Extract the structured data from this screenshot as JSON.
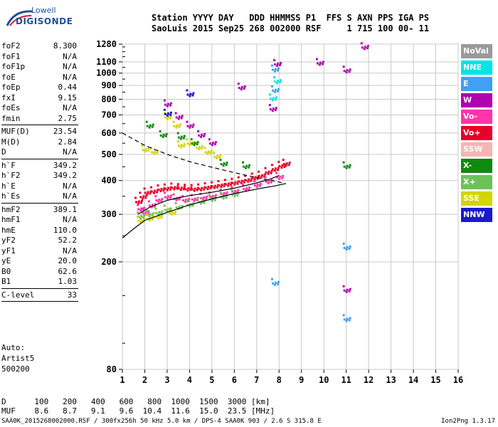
{
  "logo": {
    "line1": "Lowell",
    "line2": "DIGISONDE"
  },
  "header": {
    "line1": "Station YYYY DAY   DDD HHMMSS P1  FFS S AXN PPS IGA PS",
    "line2": "SaoLuis 2015 Sep25 268 002000 RSF     1 715 100 00- 11"
  },
  "params": [
    {
      "name": "foF2",
      "value": "8.300"
    },
    {
      "name": "foF1",
      "value": "N/A"
    },
    {
      "name": "foF1p",
      "value": "N/A"
    },
    {
      "name": "foE",
      "value": "N/A"
    },
    {
      "name": "foEp",
      "value": "0.44"
    },
    {
      "name": "fxI",
      "value": "9.15"
    },
    {
      "name": "foEs",
      "value": "N/A"
    },
    {
      "name": "fmin",
      "value": "2.75"
    },
    {
      "name": "MUF(D)",
      "value": "23.54"
    },
    {
      "name": "M(D)",
      "value": "2.84"
    },
    {
      "name": "D",
      "value": "N/A"
    },
    {
      "name": "h`F",
      "value": "349.2"
    },
    {
      "name": "h`F2",
      "value": "349.2"
    },
    {
      "name": "h`E",
      "value": "N/A"
    },
    {
      "name": "h`Es",
      "value": "N/A"
    },
    {
      "name": "hmF2",
      "value": "389.1"
    },
    {
      "name": "hmF1",
      "value": "N/A"
    },
    {
      "name": "hmE",
      "value": "110.0"
    },
    {
      "name": "yF2",
      "value": "52.2"
    },
    {
      "name": "yF1",
      "value": "N/A"
    },
    {
      "name": "yE",
      "value": "20.0"
    },
    {
      "name": "B0",
      "value": "62.6"
    },
    {
      "name": "B1",
      "value": "1.03"
    },
    {
      "name": "C-level",
      "value": "33"
    }
  ],
  "auto": {
    "line1": "Auto:",
    "line2": "Artist5",
    "line3": "500200"
  },
  "legend": [
    {
      "label": "NoVal",
      "color": "#9a9a9a"
    },
    {
      "label": "NNE",
      "color": "#00e5e5"
    },
    {
      "label": "E",
      "color": "#3fa0f5"
    },
    {
      "label": "W",
      "color": "#b000b0"
    },
    {
      "label": "Vo-",
      "color": "#ff33aa"
    },
    {
      "label": "Vo+",
      "color": "#e8002a"
    },
    {
      "label": "SSW",
      "color": "#f5b5b5"
    },
    {
      "label": "X-",
      "color": "#0f8a0f"
    },
    {
      "label": "X+",
      "color": "#6cc25a"
    },
    {
      "label": "SSE",
      "color": "#d4d400"
    },
    {
      "label": "NNW",
      "color": "#1a1acc"
    }
  ],
  "dmuf": {
    "line1": "D      100   200   400   600   800  1000  1500  3000 [km]",
    "line2": "MUF    8.6   8.7   9.1   9.6  10.4  11.6  15.0  23.5 [MHz]"
  },
  "footer": {
    "left": "SAA0K_2015268002000.RSF / 300fx256h 50 kHz 5.0 km / DPS-4 SAA0K 903 / 2.6 S 315.8 E",
    "right": "Ion2Png 1.3.17"
  },
  "chart_data": {
    "type": "scatter",
    "title": "",
    "xlabel": "",
    "ylabel": "",
    "x_ticks": [
      1,
      2,
      3,
      4,
      5,
      6,
      7,
      8,
      9,
      10,
      11,
      12,
      13,
      14,
      15,
      16
    ],
    "y_ticks": [
      80,
      200,
      300,
      400,
      500,
      600,
      700,
      800,
      900,
      1000,
      1100,
      1280
    ],
    "xlim": [
      1,
      16
    ],
    "ylim": [
      80,
      1280
    ],
    "y_scale": "log",
    "grid": true,
    "legend_position": "right",
    "traces": [
      {
        "name": "Vo+",
        "color": "#e8002a",
        "points": [
          [
            1.7,
            340
          ],
          [
            1.9,
            355
          ],
          [
            2.1,
            368
          ],
          [
            2.4,
            372
          ],
          [
            2.7,
            378
          ],
          [
            3.0,
            381
          ],
          [
            3.3,
            384
          ],
          [
            3.6,
            382
          ],
          [
            3.9,
            380
          ],
          [
            4.2,
            379
          ],
          [
            4.5,
            381
          ],
          [
            4.8,
            385
          ],
          [
            5.1,
            388
          ],
          [
            5.4,
            392
          ],
          [
            5.7,
            396
          ],
          [
            6.0,
            400
          ],
          [
            6.3,
            405
          ],
          [
            6.6,
            410
          ],
          [
            6.9,
            418
          ],
          [
            7.2,
            425
          ],
          [
            7.5,
            438
          ],
          [
            7.8,
            450
          ],
          [
            8.1,
            462
          ],
          [
            8.3,
            470
          ]
        ]
      },
      {
        "name": "Vo-",
        "color": "#ff33aa",
        "points": [
          [
            1.8,
            320
          ],
          [
            2.0,
            310
          ],
          [
            2.3,
            330
          ],
          [
            2.6,
            345
          ],
          [
            3.0,
            355
          ],
          [
            3.4,
            350
          ],
          [
            3.8,
            345
          ],
          [
            4.2,
            348
          ],
          [
            4.6,
            352
          ],
          [
            5.0,
            356
          ],
          [
            5.5,
            365
          ],
          [
            6.0,
            372
          ],
          [
            6.5,
            380
          ],
          [
            7.0,
            392
          ],
          [
            7.5,
            405
          ],
          [
            8.0,
            420
          ]
        ]
      },
      {
        "name": "X+",
        "color": "#6cc25a",
        "points": [
          [
            1.8,
            300
          ],
          [
            2.2,
            305
          ],
          [
            2.6,
            310
          ],
          [
            3.0,
            318
          ],
          [
            3.5,
            325
          ],
          [
            4.0,
            332
          ],
          [
            4.5,
            340
          ],
          [
            5.0,
            348
          ],
          [
            5.5,
            355
          ],
          [
            6.0,
            362
          ]
        ]
      },
      {
        "name": "SSE",
        "color": "#d4d400",
        "points": [
          [
            1.8,
            290
          ],
          [
            2.2,
            295
          ],
          [
            2.6,
            300
          ],
          [
            3.2,
            310
          ],
          [
            3.6,
            550
          ],
          [
            4.0,
            560
          ],
          [
            4.4,
            540
          ],
          [
            4.8,
            520
          ],
          [
            5.2,
            500
          ],
          [
            2.0,
            530
          ],
          [
            2.4,
            520
          ],
          [
            3.0,
            700
          ],
          [
            3.4,
            650
          ]
        ]
      },
      {
        "name": "W",
        "color": "#b000b0",
        "points": [
          [
            3.0,
            780
          ],
          [
            3.5,
            700
          ],
          [
            4.0,
            650
          ],
          [
            4.5,
            600
          ],
          [
            5.0,
            560
          ],
          [
            7.9,
            1100
          ],
          [
            9.8,
            1110
          ],
          [
            11.0,
            1040
          ],
          [
            11.0,
            160
          ],
          [
            11.8,
            1270
          ],
          [
            6.3,
            900
          ],
          [
            7.7,
            750
          ]
        ]
      },
      {
        "name": "E",
        "color": "#3fa0f5",
        "points": [
          [
            7.8,
            1050
          ],
          [
            7.8,
            880
          ],
          [
            7.8,
            170
          ],
          [
            11.0,
            125
          ],
          [
            11.0,
            230
          ]
        ]
      },
      {
        "name": "X-",
        "color": "#0f8a0f",
        "points": [
          [
            2.2,
            650
          ],
          [
            2.8,
            600
          ],
          [
            3.6,
            590
          ],
          [
            4.2,
            560
          ],
          [
            5.5,
            470
          ],
          [
            6.5,
            460
          ],
          [
            11.0,
            460
          ]
        ]
      },
      {
        "name": "NNE",
        "color": "#00e5e5",
        "points": [
          [
            7.9,
            950
          ],
          [
            7.7,
            820
          ]
        ]
      },
      {
        "name": "NNW",
        "color": "#1a1acc",
        "points": [
          [
            4.0,
            850
          ],
          [
            3.0,
            720
          ]
        ]
      }
    ],
    "profile_lines": [
      {
        "name": "X-trace fit",
        "points": [
          [
            1.0,
            245
          ],
          [
            1.5,
            265
          ],
          [
            2.0,
            285
          ],
          [
            3.0,
            305
          ],
          [
            4.0,
            325
          ],
          [
            5.0,
            342
          ],
          [
            6.0,
            358
          ],
          [
            7.0,
            372
          ],
          [
            7.8,
            382
          ],
          [
            8.3,
            390
          ]
        ]
      },
      {
        "name": "O-trace fit",
        "points": [
          [
            1.7,
            300
          ],
          [
            2.2,
            318
          ],
          [
            3.0,
            338
          ],
          [
            4.0,
            352
          ],
          [
            5.0,
            362
          ],
          [
            6.0,
            375
          ],
          [
            7.0,
            392
          ],
          [
            7.6,
            405
          ],
          [
            8.0,
            418
          ]
        ]
      },
      {
        "name": "Profile",
        "points": [
          [
            1.0,
            600
          ],
          [
            2.0,
            540
          ],
          [
            3.0,
            500
          ],
          [
            4.0,
            470
          ],
          [
            5.0,
            448
          ],
          [
            6.0,
            428
          ],
          [
            7.0,
            410
          ],
          [
            8.0,
            395
          ],
          [
            8.3,
            389
          ]
        ]
      }
    ]
  }
}
